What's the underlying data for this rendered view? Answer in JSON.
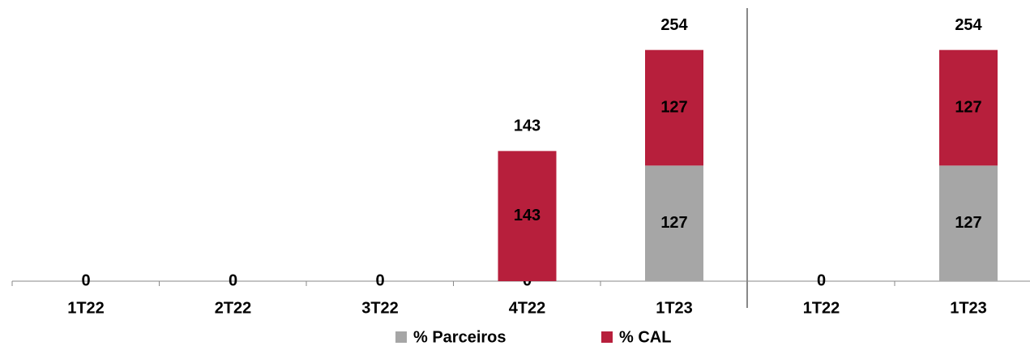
{
  "chart_data": {
    "type": "stacked_bar",
    "categories": [
      "1T22",
      "2T22",
      "3T22",
      "4T22",
      "1T23",
      "1T22",
      "1T23"
    ],
    "series": [
      {
        "name": "% Parceiros",
        "color": "#a6a6a6",
        "values": [
          0,
          0,
          0,
          0,
          127,
          0,
          127
        ]
      },
      {
        "name": "% CAL",
        "color": "#b71f3c",
        "values": [
          null,
          null,
          null,
          143,
          127,
          null,
          127
        ]
      }
    ],
    "totals": [
      null,
      null,
      null,
      143,
      254,
      null,
      254
    ],
    "ylim": [
      0,
      300
    ],
    "legend": "bottom"
  }
}
